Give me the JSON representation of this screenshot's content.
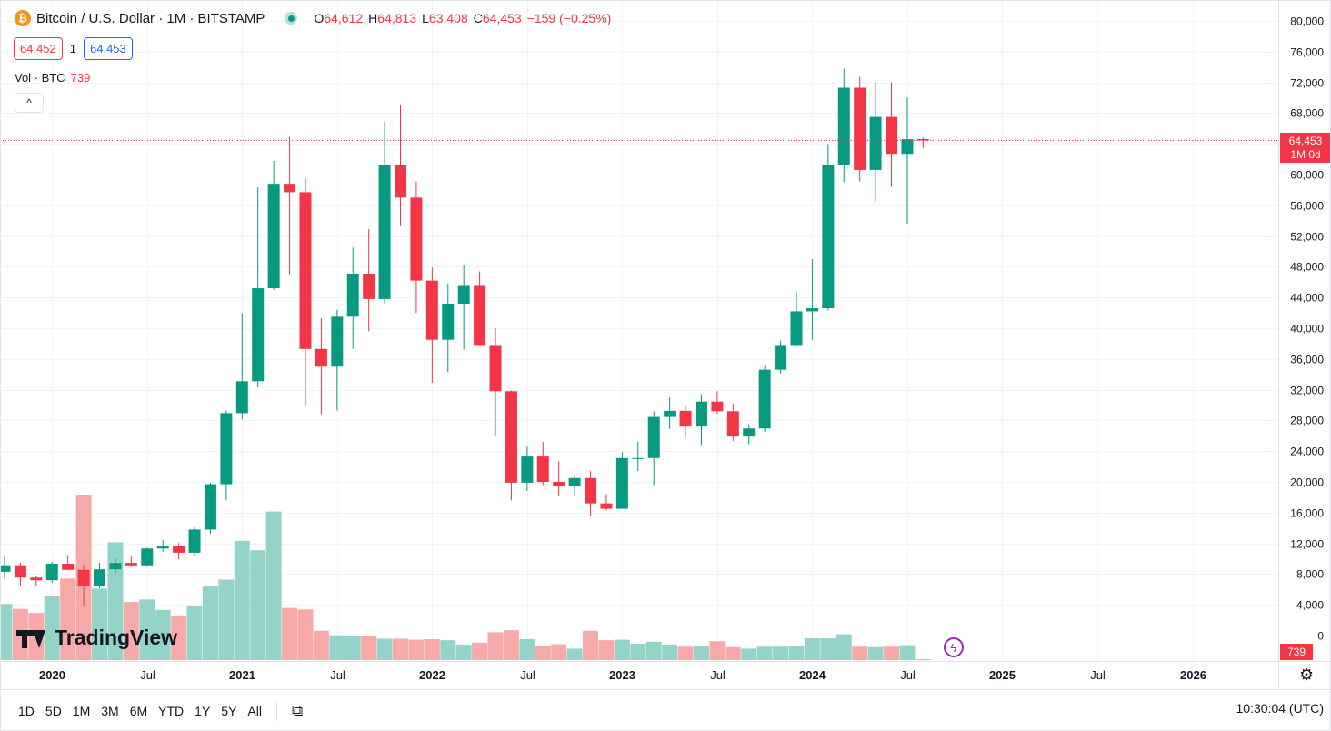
{
  "header": {
    "symbol_title": "Bitcoin / U.S. Dollar · 1M · BITSTAMP",
    "btc_logo": "₿",
    "ohlc": {
      "o_label": "O",
      "o_value": "64,612",
      "h_label": "H",
      "h_value": "64,813",
      "l_label": "L",
      "l_value": "63,408",
      "c_label": "C",
      "c_value": "64,453",
      "change": "−159 (−0.25%)"
    },
    "bid": "64,452",
    "spread": "1",
    "ask": "64,453",
    "volume_label": "Vol · BTC",
    "volume_value": "739",
    "collapse_icon": "^"
  },
  "price_tag": {
    "price": "64,453",
    "countdown": "1M 0d"
  },
  "volume_tag": "739",
  "watermark": "TradingView",
  "bottom_bar": {
    "ranges": [
      "1D",
      "5D",
      "1M",
      "3M",
      "6M",
      "YTD",
      "1Y",
      "5Y",
      "All"
    ],
    "calendar_icon": "⧉",
    "clock": "10:30:04 (UTC)"
  },
  "colors": {
    "up": "#089981",
    "down": "#f23645",
    "vol_up": "#94d3c8",
    "vol_down": "#f7a9a7",
    "grid": "#f0f3fa"
  },
  "chart_data": {
    "type": "candlestick",
    "title": "Bitcoin / U.S. Dollar · 1M · BITSTAMP",
    "ylim": [
      0,
      80000
    ],
    "y_ticks": [
      "80,000",
      "76,000",
      "72,000",
      "68,000",
      "64,000",
      "60,000",
      "56,000",
      "52,000",
      "48,000",
      "44,000",
      "40,000",
      "36,000",
      "32,000",
      "28,000",
      "24,000",
      "20,000",
      "16,000",
      "12,000",
      "8,000",
      "4,000",
      "0"
    ],
    "x_ticks": [
      "2020",
      "Jul",
      "2021",
      "Jul",
      "2022",
      "Jul",
      "2023",
      "Jul",
      "2024",
      "Jul",
      "2025",
      "Jul",
      "2026"
    ],
    "last_price": 64453,
    "candles": [
      {
        "t": "2019-10",
        "o": 8300,
        "h": 10300,
        "l": 7400,
        "c": 9150
      },
      {
        "t": "2019-11",
        "o": 9150,
        "h": 9500,
        "l": 6500,
        "c": 7550
      },
      {
        "t": "2019-12",
        "o": 7550,
        "h": 7700,
        "l": 6420,
        "c": 7200
      },
      {
        "t": "2020-01",
        "o": 7200,
        "h": 9580,
        "l": 6850,
        "c": 9350
      },
      {
        "t": "2020-02",
        "o": 9350,
        "h": 10500,
        "l": 8500,
        "c": 8550
      },
      {
        "t": "2020-03",
        "o": 8550,
        "h": 9200,
        "l": 3850,
        "c": 6420
      },
      {
        "t": "2020-04",
        "o": 6420,
        "h": 9460,
        "l": 6150,
        "c": 8620
      },
      {
        "t": "2020-05",
        "o": 8620,
        "h": 10070,
        "l": 8120,
        "c": 9450
      },
      {
        "t": "2020-06",
        "o": 9450,
        "h": 10400,
        "l": 8900,
        "c": 9140
      },
      {
        "t": "2020-07",
        "o": 9140,
        "h": 11450,
        "l": 8970,
        "c": 11330
      },
      {
        "t": "2020-08",
        "o": 11330,
        "h": 12470,
        "l": 10900,
        "c": 11650
      },
      {
        "t": "2020-09",
        "o": 11650,
        "h": 12050,
        "l": 9900,
        "c": 10780
      },
      {
        "t": "2020-10",
        "o": 10780,
        "h": 14100,
        "l": 10380,
        "c": 13800
      },
      {
        "t": "2020-11",
        "o": 13800,
        "h": 19900,
        "l": 13240,
        "c": 19700
      },
      {
        "t": "2020-12",
        "o": 19700,
        "h": 29300,
        "l": 17600,
        "c": 28950
      },
      {
        "t": "2021-01",
        "o": 28950,
        "h": 41950,
        "l": 28130,
        "c": 33100
      },
      {
        "t": "2021-02",
        "o": 33100,
        "h": 58350,
        "l": 32300,
        "c": 45200
      },
      {
        "t": "2021-03",
        "o": 45200,
        "h": 61780,
        "l": 45000,
        "c": 58800
      },
      {
        "t": "2021-04",
        "o": 58800,
        "h": 64900,
        "l": 47000,
        "c": 57700
      },
      {
        "t": "2021-05",
        "o": 57700,
        "h": 59500,
        "l": 30000,
        "c": 37300
      },
      {
        "t": "2021-06",
        "o": 37300,
        "h": 41300,
        "l": 28800,
        "c": 35000
      },
      {
        "t": "2021-07",
        "o": 35000,
        "h": 42400,
        "l": 29300,
        "c": 41500
      },
      {
        "t": "2021-08",
        "o": 41500,
        "h": 50500,
        "l": 37300,
        "c": 47100
      },
      {
        "t": "2021-09",
        "o": 47100,
        "h": 52900,
        "l": 39600,
        "c": 43800
      },
      {
        "t": "2021-10",
        "o": 43800,
        "h": 66900,
        "l": 43200,
        "c": 61300
      },
      {
        "t": "2021-11",
        "o": 61300,
        "h": 69000,
        "l": 53300,
        "c": 57000
      },
      {
        "t": "2021-12",
        "o": 57000,
        "h": 59100,
        "l": 42000,
        "c": 46200
      },
      {
        "t": "2022-01",
        "o": 46200,
        "h": 47900,
        "l": 32900,
        "c": 38500
      },
      {
        "t": "2022-02",
        "o": 38500,
        "h": 45800,
        "l": 34300,
        "c": 43200
      },
      {
        "t": "2022-03",
        "o": 43200,
        "h": 48200,
        "l": 37200,
        "c": 45500
      },
      {
        "t": "2022-04",
        "o": 45500,
        "h": 47400,
        "l": 37700,
        "c": 37700
      },
      {
        "t": "2022-05",
        "o": 37700,
        "h": 40000,
        "l": 26000,
        "c": 31800
      },
      {
        "t": "2022-06",
        "o": 31800,
        "h": 31900,
        "l": 17600,
        "c": 19900
      },
      {
        "t": "2022-07",
        "o": 19900,
        "h": 24600,
        "l": 18800,
        "c": 23300
      },
      {
        "t": "2022-08",
        "o": 23300,
        "h": 25200,
        "l": 19600,
        "c": 20000
      },
      {
        "t": "2022-09",
        "o": 20000,
        "h": 22700,
        "l": 18200,
        "c": 19400
      },
      {
        "t": "2022-10",
        "o": 19400,
        "h": 20900,
        "l": 18200,
        "c": 20500
      },
      {
        "t": "2022-11",
        "o": 20500,
        "h": 21400,
        "l": 15500,
        "c": 17200
      },
      {
        "t": "2022-12",
        "o": 17200,
        "h": 18400,
        "l": 16300,
        "c": 16500
      },
      {
        "t": "2023-01",
        "o": 16500,
        "h": 23900,
        "l": 16500,
        "c": 23100
      },
      {
        "t": "2023-02",
        "o": 23100,
        "h": 25200,
        "l": 21400,
        "c": 23100
      },
      {
        "t": "2023-03",
        "o": 23100,
        "h": 29200,
        "l": 19600,
        "c": 28450
      },
      {
        "t": "2023-04",
        "o": 28450,
        "h": 31000,
        "l": 26900,
        "c": 29250
      },
      {
        "t": "2023-05",
        "o": 29250,
        "h": 29800,
        "l": 25800,
        "c": 27200
      },
      {
        "t": "2023-06",
        "o": 27200,
        "h": 31400,
        "l": 24800,
        "c": 30450
      },
      {
        "t": "2023-07",
        "o": 30450,
        "h": 31800,
        "l": 28900,
        "c": 29200
      },
      {
        "t": "2023-08",
        "o": 29200,
        "h": 30200,
        "l": 25300,
        "c": 25900
      },
      {
        "t": "2023-09",
        "o": 25900,
        "h": 27500,
        "l": 24900,
        "c": 26950
      },
      {
        "t": "2023-10",
        "o": 26950,
        "h": 35200,
        "l": 26550,
        "c": 34600
      },
      {
        "t": "2023-11",
        "o": 34600,
        "h": 38400,
        "l": 34100,
        "c": 37700
      },
      {
        "t": "2023-12",
        "o": 37700,
        "h": 44700,
        "l": 37600,
        "c": 42200
      },
      {
        "t": "2024-01",
        "o": 42200,
        "h": 49000,
        "l": 38500,
        "c": 42600
      },
      {
        "t": "2024-02",
        "o": 42600,
        "h": 64000,
        "l": 42300,
        "c": 61200
      },
      {
        "t": "2024-03",
        "o": 61200,
        "h": 73800,
        "l": 59000,
        "c": 71300
      },
      {
        "t": "2024-04",
        "o": 71300,
        "h": 72700,
        "l": 59100,
        "c": 60600
      },
      {
        "t": "2024-05",
        "o": 60600,
        "h": 72000,
        "l": 56500,
        "c": 67500
      },
      {
        "t": "2024-06",
        "o": 67500,
        "h": 72000,
        "l": 58400,
        "c": 62700
      },
      {
        "t": "2024-07",
        "o": 62700,
        "h": 70000,
        "l": 53600,
        "c": 64600
      },
      {
        "t": "2024-08",
        "o": 64612,
        "h": 64813,
        "l": 63408,
        "c": 64453
      }
    ],
    "volumes_btc": [
      113000,
      103000,
      95000,
      130000,
      164000,
      333000,
      144000,
      237000,
      117000,
      122000,
      101000,
      90000,
      109000,
      148000,
      162000,
      240000,
      221000,
      299000,
      105000,
      102000,
      59000,
      50000,
      48000,
      49000,
      43000,
      43000,
      41000,
      42000,
      40000,
      31000,
      35000,
      56000,
      60000,
      42000,
      29000,
      32000,
      23000,
      59000,
      40000,
      41000,
      33000,
      37000,
      31000,
      27000,
      28000,
      38000,
      26000,
      23000,
      27000,
      27000,
      29000,
      44000,
      44000,
      52000,
      27000,
      26000,
      27000,
      30000,
      739
    ]
  }
}
